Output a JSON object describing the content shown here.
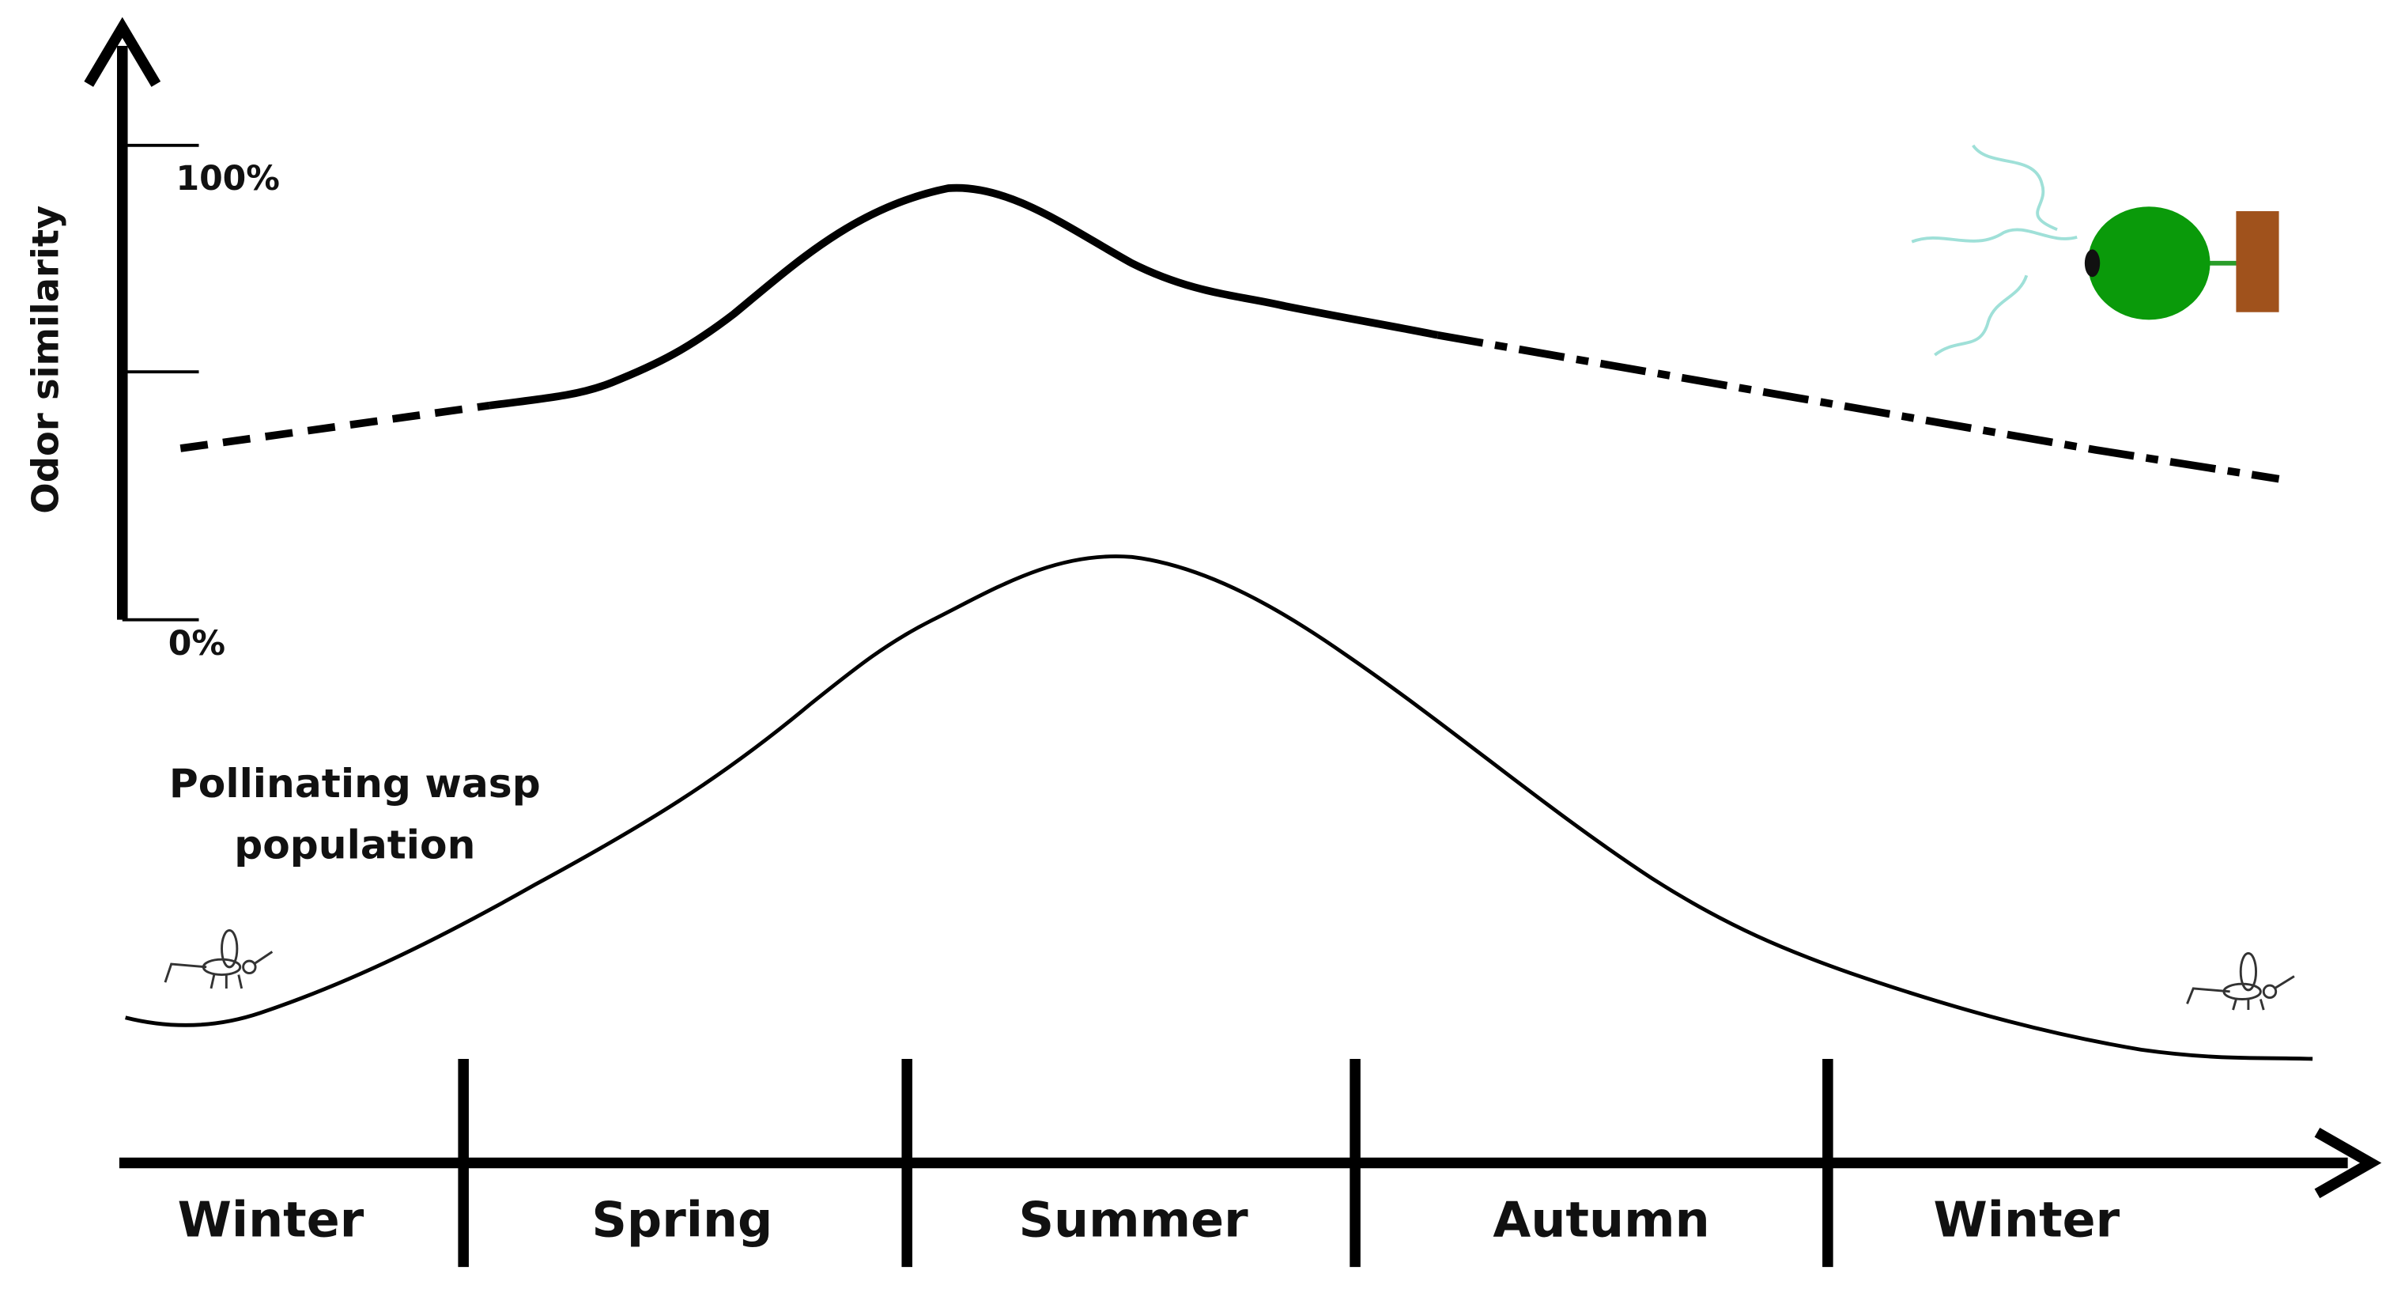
{
  "y_axis": {
    "label": "Odor similarity",
    "top_label": "100%",
    "bottom_label": "0%"
  },
  "annotation": {
    "lines": [
      "Pollinating wasp",
      "population"
    ]
  },
  "seasons": [
    "Winter",
    "Spring",
    "Summer",
    "Autumn",
    "Winter"
  ]
}
